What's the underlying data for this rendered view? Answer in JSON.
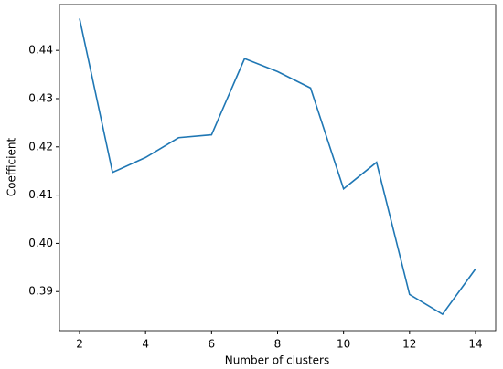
{
  "chart_data": {
    "type": "line",
    "xlabel": "Number of clusters",
    "ylabel": "Coefficient",
    "x": [
      2,
      3,
      4,
      5,
      6,
      7,
      8,
      9,
      10,
      11,
      12,
      13,
      14
    ],
    "series": [
      {
        "color": "#1f77b4",
        "values": [
          0.4466,
          0.4147,
          0.4178,
          0.4219,
          0.4225,
          0.4383,
          0.4356,
          0.4322,
          0.4113,
          0.4168,
          0.3894,
          0.3853,
          0.3947
        ]
      }
    ],
    "xlim": [
      1.39,
      14.61
    ],
    "ylim": [
      0.3819,
      0.4495
    ],
    "xticks": [
      2,
      4,
      6,
      8,
      10,
      12,
      14
    ],
    "yticks": [
      0.39,
      {
        "value": 0.4,
        "label": "0.40"
      },
      0.41,
      0.42,
      0.43,
      0.44
    ]
  }
}
